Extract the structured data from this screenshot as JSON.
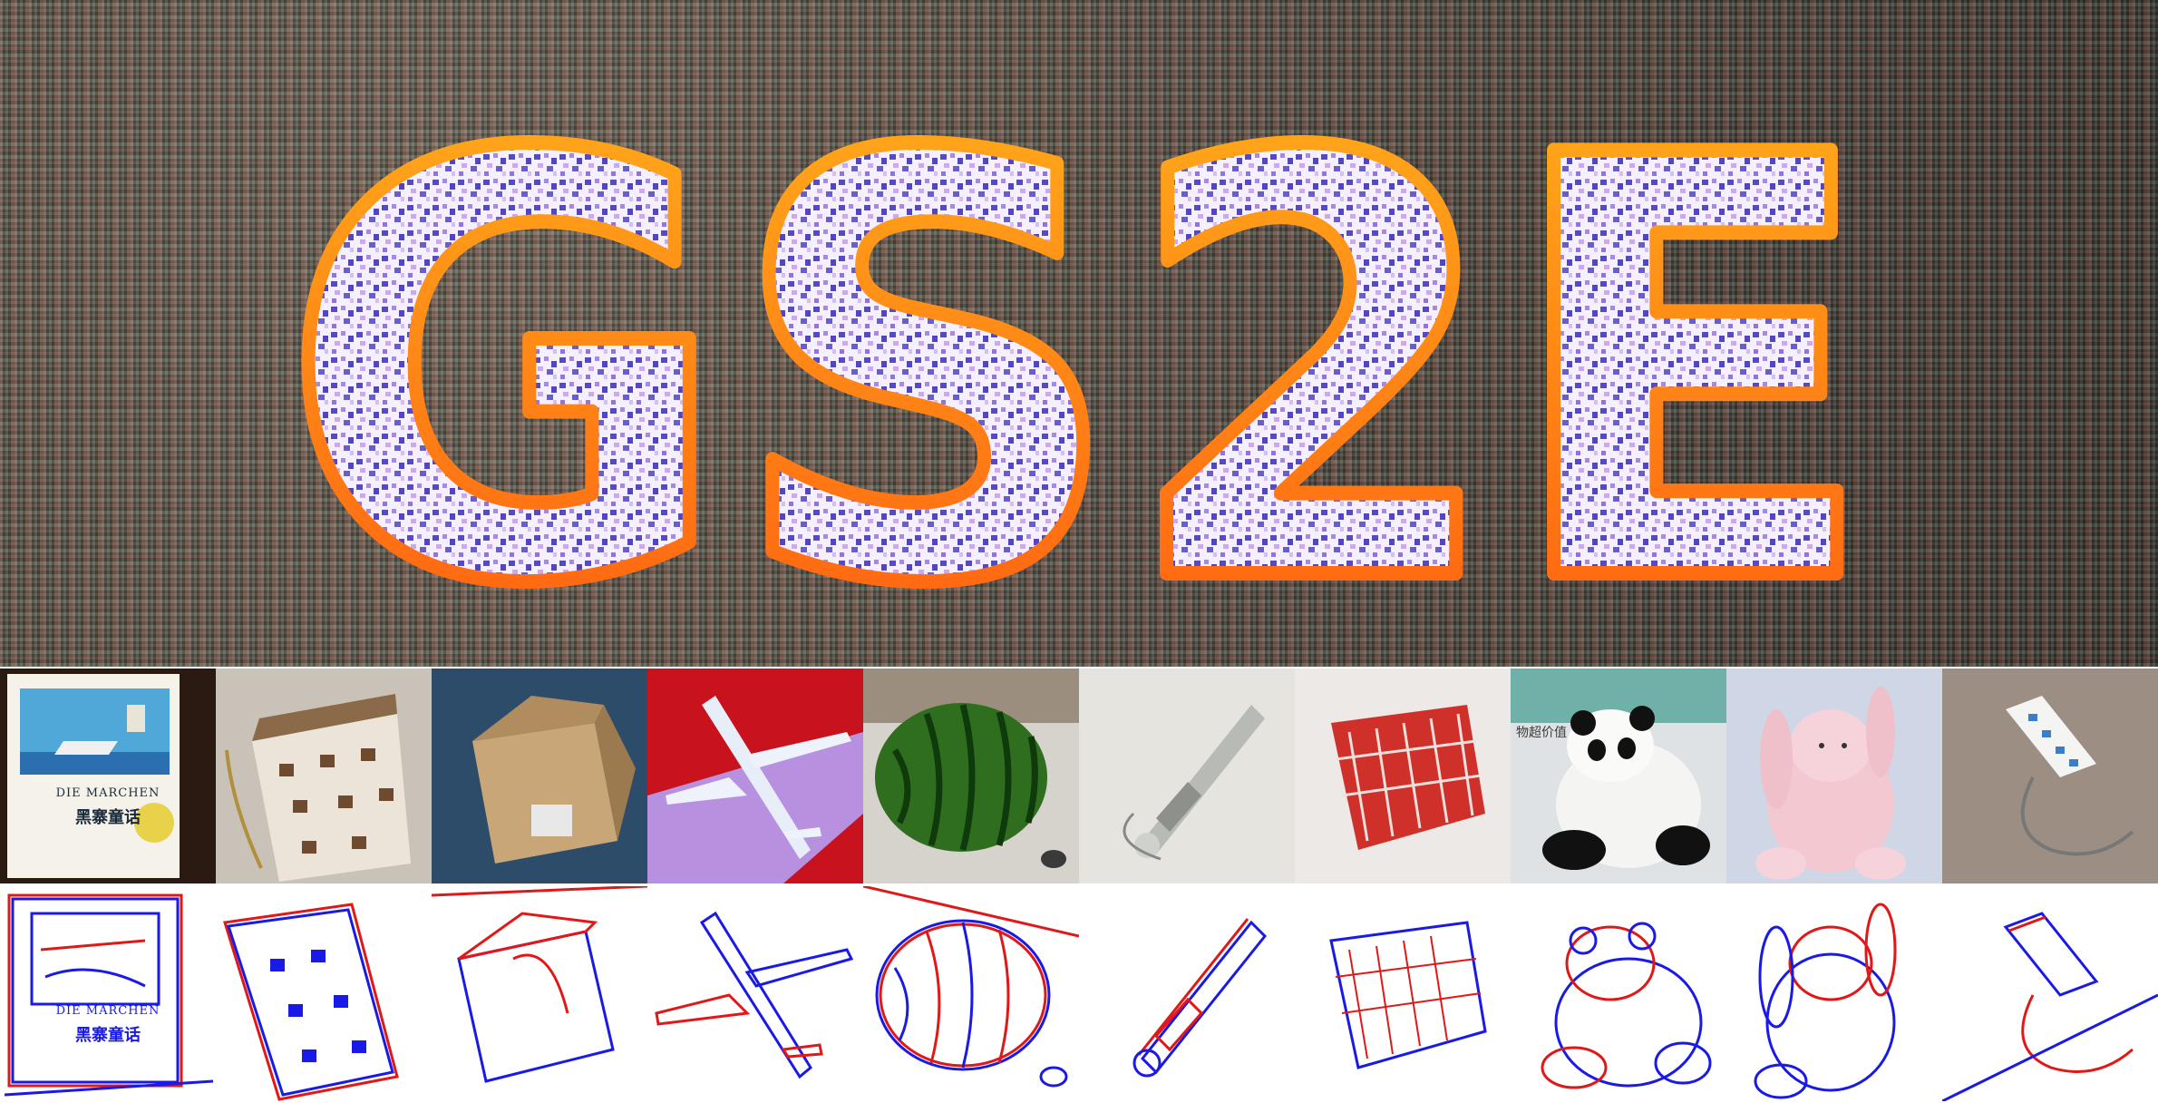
{
  "banner": {
    "logo_text": "GS2E",
    "colors": {
      "outline_top": "#ffb21c",
      "outline_bottom": "#ff5a10",
      "fill": "#f4f0ff",
      "fill_noise": "#3a2bbf"
    }
  },
  "photos": [
    {
      "name": "book",
      "title_text": "DIE MARCHEN",
      "cn_text": "黑寨童话"
    },
    {
      "name": "handbag"
    },
    {
      "name": "cardboard-box"
    },
    {
      "name": "toy-airplane"
    },
    {
      "name": "watermelon"
    },
    {
      "name": "tool-handle"
    },
    {
      "name": "red-basket"
    },
    {
      "name": "panda-plush",
      "bg_text": "物超价值"
    },
    {
      "name": "bunny-plush"
    },
    {
      "name": "power-strip"
    }
  ],
  "events": [
    {
      "name": "book-events",
      "title_text": "DIE MARCHEN",
      "cn_text": "黑寨童话"
    },
    {
      "name": "handbag-events"
    },
    {
      "name": "box-events"
    },
    {
      "name": "airplane-events"
    },
    {
      "name": "watermelon-events"
    },
    {
      "name": "handle-events"
    },
    {
      "name": "basket-events"
    },
    {
      "name": "panda-events"
    },
    {
      "name": "bunny-events"
    },
    {
      "name": "strip-events"
    }
  ],
  "event_colors": {
    "positive": "#e01818",
    "negative": "#1a1ae6"
  }
}
